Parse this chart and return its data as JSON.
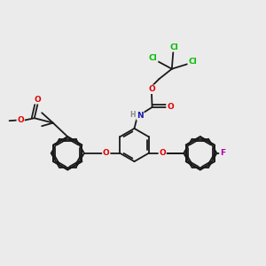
{
  "bg_color": "#ebebeb",
  "bond_color": "#1a1a1a",
  "atom_colors": {
    "O": "#e00000",
    "N": "#1a1aaa",
    "Cl": "#00bb00",
    "F": "#aa00aa",
    "H": "#888888",
    "C": "#1a1a1a"
  },
  "lw": 1.3,
  "fs": 6.5,
  "r_ring": 0.62
}
